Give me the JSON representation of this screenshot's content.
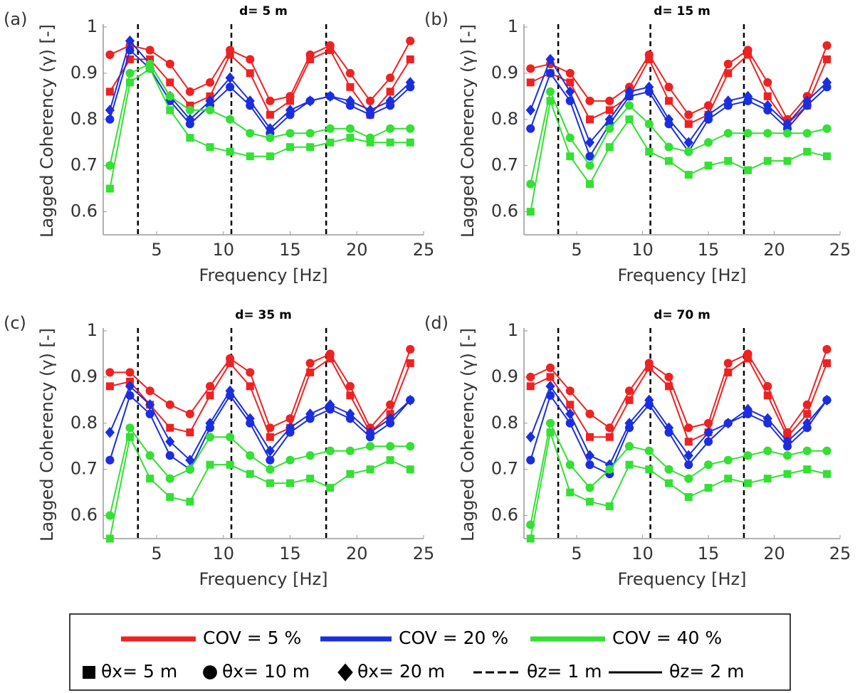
{
  "chart_data": [
    {
      "type": "line",
      "panel": "(a)",
      "title": "d= 5 m",
      "x_label": "Frequency [Hz]",
      "y_label": "Lagged Coherency (γ) [-]",
      "x": [
        1.5,
        3,
        4.5,
        6,
        7.5,
        9,
        10.5,
        12,
        13.5,
        15,
        16.5,
        18,
        19.5,
        21,
        22.5,
        24
      ],
      "xlim": [
        1,
        25
      ],
      "xticks": [
        5,
        10,
        15,
        20,
        25
      ],
      "ylim": [
        0.55,
        1
      ],
      "yticks": [
        0.6,
        0.7,
        0.8,
        0.9,
        1
      ],
      "vlines": [
        3.6,
        10.6,
        17.7
      ],
      "series": [
        {
          "color": "#ee2222",
          "marker": "circle",
          "values": [
            0.94,
            0.96,
            0.95,
            0.92,
            0.86,
            0.88,
            0.95,
            0.93,
            0.84,
            0.85,
            0.94,
            0.96,
            0.9,
            0.84,
            0.89,
            0.97
          ]
        },
        {
          "color": "#ee2222",
          "marker": "square",
          "values": [
            0.86,
            0.93,
            0.93,
            0.88,
            0.83,
            0.85,
            0.94,
            0.9,
            0.81,
            0.84,
            0.93,
            0.95,
            0.87,
            0.81,
            0.86,
            0.93
          ]
        },
        {
          "color": "#1a2ee0",
          "marker": "diamond",
          "values": [
            0.82,
            0.97,
            0.92,
            0.85,
            0.8,
            0.84,
            0.89,
            0.84,
            0.78,
            0.82,
            0.84,
            0.85,
            0.84,
            0.82,
            0.84,
            0.88
          ]
        },
        {
          "color": "#1a2ee0",
          "marker": "circle",
          "values": [
            0.8,
            0.95,
            0.91,
            0.84,
            0.79,
            0.83,
            0.87,
            0.83,
            0.77,
            0.81,
            0.84,
            0.85,
            0.83,
            0.81,
            0.83,
            0.87
          ]
        },
        {
          "color": "#33e033",
          "marker": "circle",
          "values": [
            0.7,
            0.9,
            0.92,
            0.85,
            0.82,
            0.82,
            0.8,
            0.77,
            0.76,
            0.77,
            0.77,
            0.78,
            0.78,
            0.76,
            0.78,
            0.78
          ]
        },
        {
          "color": "#33e033",
          "marker": "square",
          "values": [
            0.65,
            0.88,
            0.91,
            0.82,
            0.76,
            0.74,
            0.73,
            0.72,
            0.72,
            0.74,
            0.74,
            0.75,
            0.76,
            0.75,
            0.75,
            0.75
          ]
        }
      ]
    },
    {
      "type": "line",
      "panel": "(b)",
      "title": "d= 15 m",
      "x_label": "Frequency [Hz]",
      "y_label": "Lagged Coherency (γ) [-]",
      "x": [
        1.5,
        3,
        4.5,
        6,
        7.5,
        9,
        10.5,
        12,
        13.5,
        15,
        16.5,
        18,
        19.5,
        21,
        22.5,
        24
      ],
      "xlim": [
        1,
        25
      ],
      "xticks": [
        5,
        10,
        15,
        20,
        25
      ],
      "ylim": [
        0.55,
        1
      ],
      "yticks": [
        0.6,
        0.7,
        0.8,
        0.9,
        1
      ],
      "vlines": [
        3.6,
        10.6,
        17.7
      ],
      "series": [
        {
          "color": "#ee2222",
          "marker": "circle",
          "values": [
            0.91,
            0.92,
            0.9,
            0.84,
            0.84,
            0.87,
            0.94,
            0.87,
            0.81,
            0.83,
            0.92,
            0.95,
            0.88,
            0.8,
            0.85,
            0.96
          ]
        },
        {
          "color": "#ee2222",
          "marker": "square",
          "values": [
            0.88,
            0.9,
            0.88,
            0.8,
            0.82,
            0.85,
            0.93,
            0.84,
            0.79,
            0.81,
            0.9,
            0.94,
            0.85,
            0.79,
            0.83,
            0.93
          ]
        },
        {
          "color": "#1a2ee0",
          "marker": "diamond",
          "values": [
            0.82,
            0.93,
            0.86,
            0.75,
            0.8,
            0.86,
            0.87,
            0.8,
            0.75,
            0.81,
            0.84,
            0.85,
            0.83,
            0.79,
            0.84,
            0.88
          ]
        },
        {
          "color": "#1a2ee0",
          "marker": "circle",
          "values": [
            0.78,
            0.9,
            0.84,
            0.72,
            0.79,
            0.85,
            0.86,
            0.79,
            0.73,
            0.8,
            0.83,
            0.84,
            0.82,
            0.78,
            0.83,
            0.87
          ]
        },
        {
          "color": "#33e033",
          "marker": "circle",
          "values": [
            0.66,
            0.86,
            0.76,
            0.7,
            0.78,
            0.83,
            0.79,
            0.74,
            0.73,
            0.75,
            0.77,
            0.77,
            0.77,
            0.77,
            0.77,
            0.78
          ]
        },
        {
          "color": "#33e033",
          "marker": "square",
          "values": [
            0.6,
            0.84,
            0.72,
            0.66,
            0.74,
            0.8,
            0.73,
            0.71,
            0.68,
            0.7,
            0.71,
            0.69,
            0.71,
            0.71,
            0.73,
            0.72
          ]
        }
      ]
    },
    {
      "type": "line",
      "panel": "(c)",
      "title": "d= 35 m",
      "x_label": "Frequency [Hz]",
      "y_label": "Lagged Coherency (γ) [-]",
      "x": [
        1.5,
        3,
        4.5,
        6,
        7.5,
        9,
        10.5,
        12,
        13.5,
        15,
        16.5,
        18,
        19.5,
        21,
        22.5,
        24
      ],
      "xlim": [
        1,
        25
      ],
      "xticks": [
        5,
        10,
        15,
        20,
        25
      ],
      "ylim": [
        0.55,
        1
      ],
      "yticks": [
        0.6,
        0.7,
        0.8,
        0.9,
        1
      ],
      "vlines": [
        3.6,
        10.6,
        17.7
      ],
      "series": [
        {
          "color": "#ee2222",
          "marker": "circle",
          "values": [
            0.91,
            0.91,
            0.87,
            0.84,
            0.82,
            0.88,
            0.94,
            0.91,
            0.79,
            0.81,
            0.93,
            0.95,
            0.88,
            0.79,
            0.84,
            0.96
          ]
        },
        {
          "color": "#ee2222",
          "marker": "square",
          "values": [
            0.88,
            0.89,
            0.84,
            0.79,
            0.78,
            0.86,
            0.93,
            0.88,
            0.77,
            0.79,
            0.91,
            0.94,
            0.86,
            0.78,
            0.82,
            0.93
          ]
        },
        {
          "color": "#1a2ee0",
          "marker": "diamond",
          "values": [
            0.78,
            0.88,
            0.84,
            0.76,
            0.72,
            0.8,
            0.87,
            0.81,
            0.74,
            0.79,
            0.82,
            0.84,
            0.82,
            0.78,
            0.81,
            0.85
          ]
        },
        {
          "color": "#1a2ee0",
          "marker": "circle",
          "values": [
            0.72,
            0.86,
            0.82,
            0.73,
            0.7,
            0.79,
            0.86,
            0.8,
            0.72,
            0.78,
            0.81,
            0.83,
            0.81,
            0.77,
            0.8,
            0.85
          ]
        },
        {
          "color": "#33e033",
          "marker": "circle",
          "values": [
            0.6,
            0.79,
            0.73,
            0.68,
            0.7,
            0.77,
            0.77,
            0.73,
            0.7,
            0.72,
            0.73,
            0.74,
            0.74,
            0.75,
            0.75,
            0.75
          ]
        },
        {
          "color": "#33e033",
          "marker": "square",
          "values": [
            0.55,
            0.77,
            0.68,
            0.64,
            0.63,
            0.71,
            0.71,
            0.69,
            0.67,
            0.67,
            0.68,
            0.66,
            0.69,
            0.7,
            0.72,
            0.7
          ]
        }
      ]
    },
    {
      "type": "line",
      "panel": "(d)",
      "title": "d= 70 m",
      "x_label": "Frequency [Hz]",
      "y_label": "Lagged Coherency (γ) [-]",
      "x": [
        1.5,
        3,
        4.5,
        6,
        7.5,
        9,
        10.5,
        12,
        13.5,
        15,
        16.5,
        18,
        19.5,
        21,
        22.5,
        24
      ],
      "xlim": [
        1,
        25
      ],
      "xticks": [
        5,
        10,
        15,
        20,
        25
      ],
      "ylim": [
        0.55,
        1
      ],
      "yticks": [
        0.6,
        0.7,
        0.8,
        0.9,
        1
      ],
      "vlines": [
        3.6,
        10.6,
        17.7
      ],
      "series": [
        {
          "color": "#ee2222",
          "marker": "circle",
          "values": [
            0.9,
            0.92,
            0.87,
            0.82,
            0.79,
            0.87,
            0.93,
            0.9,
            0.79,
            0.8,
            0.93,
            0.95,
            0.88,
            0.78,
            0.84,
            0.96
          ]
        },
        {
          "color": "#ee2222",
          "marker": "square",
          "values": [
            0.88,
            0.9,
            0.84,
            0.77,
            0.77,
            0.85,
            0.92,
            0.88,
            0.76,
            0.78,
            0.91,
            0.94,
            0.86,
            0.77,
            0.82,
            0.93
          ]
        },
        {
          "color": "#1a2ee0",
          "marker": "diamond",
          "values": [
            0.77,
            0.88,
            0.82,
            0.73,
            0.71,
            0.8,
            0.85,
            0.79,
            0.73,
            0.78,
            0.8,
            0.83,
            0.81,
            0.76,
            0.8,
            0.85
          ]
        },
        {
          "color": "#1a2ee0",
          "marker": "circle",
          "values": [
            0.72,
            0.86,
            0.8,
            0.71,
            0.69,
            0.79,
            0.84,
            0.78,
            0.71,
            0.76,
            0.8,
            0.82,
            0.8,
            0.75,
            0.79,
            0.85
          ]
        },
        {
          "color": "#33e033",
          "marker": "circle",
          "values": [
            0.58,
            0.8,
            0.71,
            0.66,
            0.7,
            0.75,
            0.74,
            0.7,
            0.68,
            0.71,
            0.72,
            0.73,
            0.74,
            0.73,
            0.74,
            0.74
          ]
        },
        {
          "color": "#33e033",
          "marker": "square",
          "values": [
            0.55,
            0.78,
            0.65,
            0.63,
            0.62,
            0.71,
            0.7,
            0.67,
            0.64,
            0.66,
            0.68,
            0.67,
            0.68,
            0.69,
            0.7,
            0.69
          ]
        }
      ]
    }
  ],
  "legend": {
    "items": [
      {
        "label": "COV = 5 %",
        "style": "line",
        "color": "#ee2222"
      },
      {
        "label": "COV = 20 %",
        "style": "line",
        "color": "#1a2ee0"
      },
      {
        "label": "COV = 40 %",
        "style": "line",
        "color": "#33e033"
      },
      {
        "label": "θx= 5 m",
        "style": "square",
        "color": "#000000"
      },
      {
        "label": "θx= 10 m",
        "style": "circle",
        "color": "#000000"
      },
      {
        "label": "θx= 20 m",
        "style": "diamond",
        "color": "#000000"
      },
      {
        "label": "θz= 1 m",
        "style": "dashed",
        "color": "#000000"
      },
      {
        "label": "θz= 2 m",
        "style": "line",
        "color": "#000000"
      }
    ]
  }
}
